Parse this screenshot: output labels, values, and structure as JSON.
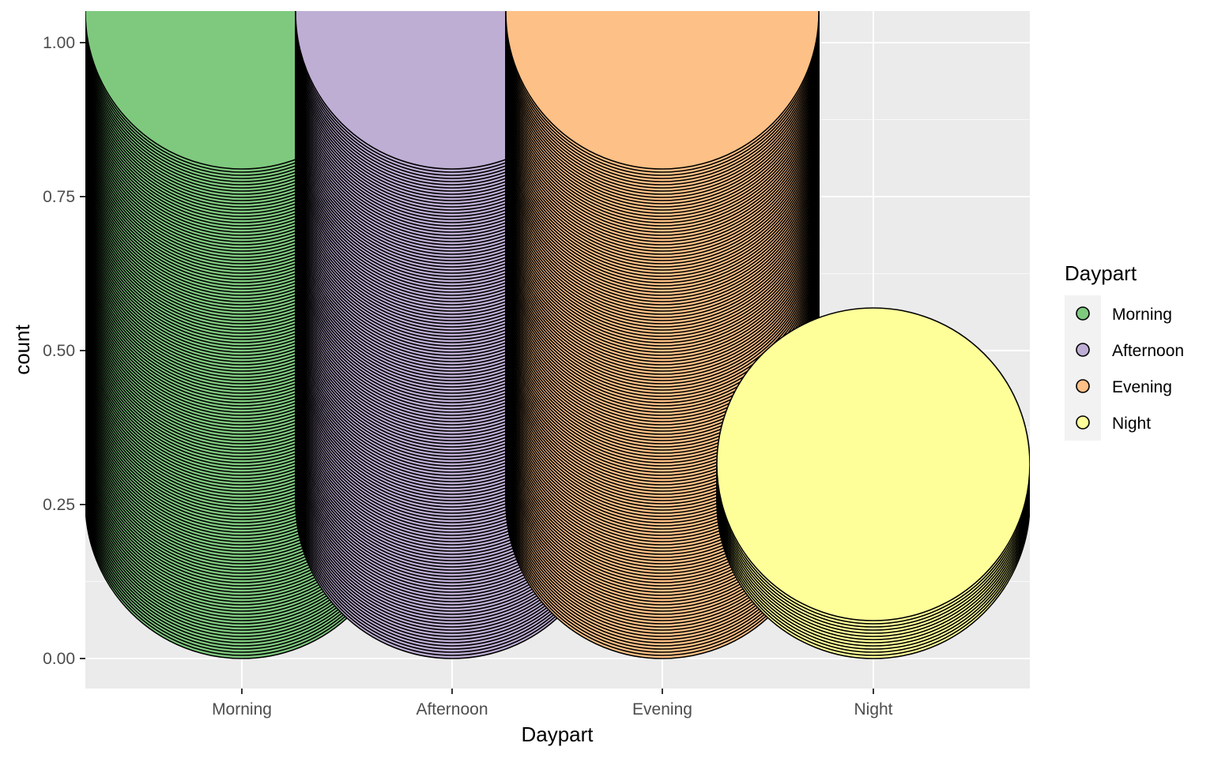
{
  "chart_data": {
    "type": "scatter",
    "geom": "stacked dots",
    "xlabel": "Daypart",
    "ylabel": "count",
    "categories": [
      "Morning",
      "Afternoon",
      "Evening",
      "Night"
    ],
    "ylim": [
      -0.05,
      1.05
    ],
    "y_ticks": [
      0.0,
      0.25,
      0.5,
      0.75,
      1.0
    ],
    "y_tick_labels": [
      "0.00",
      "0.25",
      "0.50",
      "0.75",
      "1.00"
    ],
    "grid": true,
    "series": [
      {
        "category": "Morning",
        "fill": "#7fc97f",
        "dot_stack_top": 1.05
      },
      {
        "category": "Afternoon",
        "fill": "#beaed4",
        "dot_stack_top": 1.05
      },
      {
        "category": "Evening",
        "fill": "#fdc086",
        "dot_stack_top": 1.05
      },
      {
        "category": "Night",
        "fill": "#ffff99",
        "dot_stack_top": 0.32
      }
    ],
    "legend": {
      "title": "Daypart",
      "position": "right",
      "entries": [
        {
          "label": "Morning",
          "color": "#7fc97f"
        },
        {
          "label": "Afternoon",
          "color": "#beaed4"
        },
        {
          "label": "Evening",
          "color": "#fdc086"
        },
        {
          "label": "Night",
          "color": "#ffff99"
        }
      ]
    },
    "colors": {
      "panel_background": "#ebebeb",
      "grid_major": "#ffffff",
      "dot_outline": "#000000"
    }
  }
}
